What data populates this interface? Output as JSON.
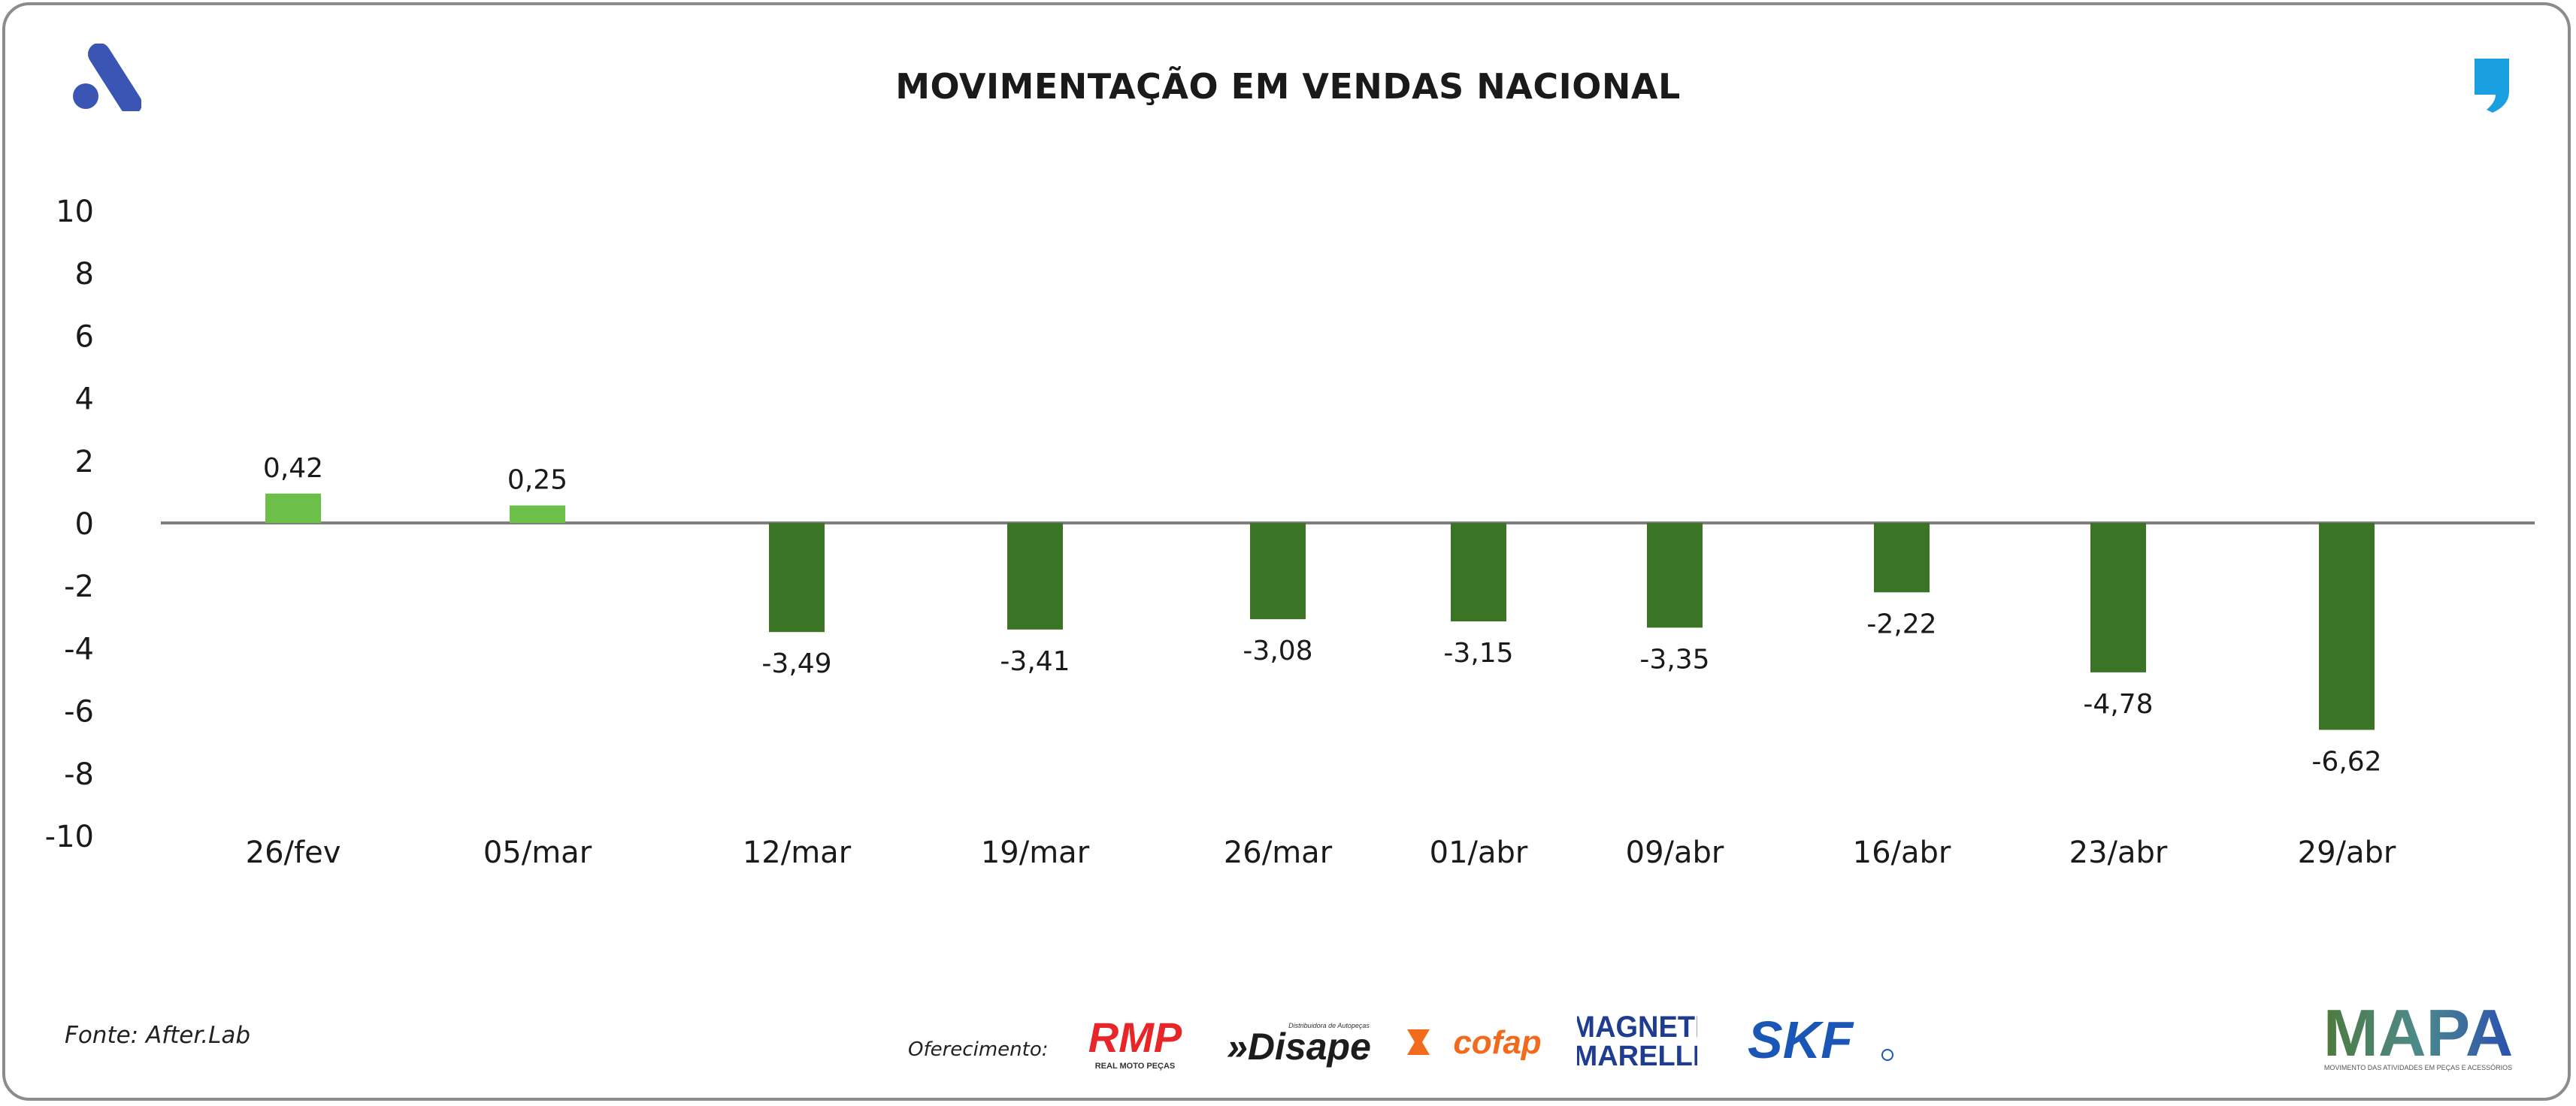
{
  "header": {
    "title": "MOVIMENTAÇÃO EM VENDAS NACIONAL"
  },
  "footer": {
    "source": "Fonte: After.Lab",
    "offer_label": "Oferecimento:",
    "sponsors": {
      "rmp": "RMP",
      "rmp_sub": "REAL MOTO PEÇAS",
      "disape": "»Disape",
      "disape_sub": "Distribuidora de Autopeças",
      "cofap": "cofap",
      "magneti_1": "MAGNETI",
      "magneti_2": "MARELLI",
      "skf": "SKF",
      "mapa": "MAPA",
      "mapa_sub": "MOVIMENTO DAS ATIVIDADES EM PEÇAS E ACESSÓRIOS"
    }
  },
  "colors": {
    "positive": "#6cc04a",
    "negative": "#3c7426",
    "zero_line": "#7f7f7f",
    "logo_blue": "#3a55b4",
    "quote_blue": "#1aa0e0"
  },
  "chart_data": {
    "type": "bar",
    "title": "MOVIMENTAÇÃO EM VENDAS NACIONAL",
    "xlabel": "",
    "ylabel": "",
    "categories": [
      "26/fev",
      "05/mar",
      "12/mar",
      "19/mar",
      "26/mar",
      "01/abr",
      "09/abr",
      "16/abr",
      "23/abr",
      "29/abr"
    ],
    "values": [
      0.42,
      0.25,
      -3.49,
      -3.41,
      -3.08,
      -3.15,
      -3.35,
      -2.22,
      -4.78,
      -6.62
    ],
    "value_labels": [
      "0,42",
      "0,25",
      "-3,49",
      "-3,41",
      "-3,08",
      "-3,15",
      "-3,35",
      "-2,22",
      "-4,78",
      "-6,62"
    ],
    "ylim": [
      -10,
      10
    ],
    "yticks": [
      10,
      8,
      6,
      4,
      2,
      0,
      -2,
      -4,
      -6,
      -8,
      -10
    ],
    "grid": false,
    "legend": "none"
  }
}
